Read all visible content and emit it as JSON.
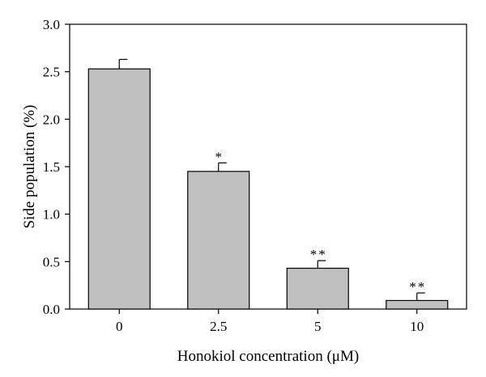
{
  "chart_data": {
    "type": "bar",
    "categories": [
      "0",
      "2.5",
      "5",
      "10"
    ],
    "values": [
      2.53,
      1.45,
      0.43,
      0.09
    ],
    "error_bars": [
      0.1,
      0.09,
      0.08,
      0.08
    ],
    "significance": [
      "",
      "*",
      "**",
      "**"
    ],
    "title": "",
    "xlabel": "Honokiol concentration (μM)",
    "ylabel": "Side population (%)",
    "ylim": [
      0,
      3.0
    ],
    "yticks": [
      "0.0",
      "0.5",
      "1.0",
      "1.5",
      "2.0",
      "2.5",
      "3.0"
    ],
    "grid": false,
    "legend": "none",
    "colors": {
      "bar_fill": "#c0c0c0",
      "bar_stroke": "#000000",
      "axis": "#000000"
    }
  }
}
